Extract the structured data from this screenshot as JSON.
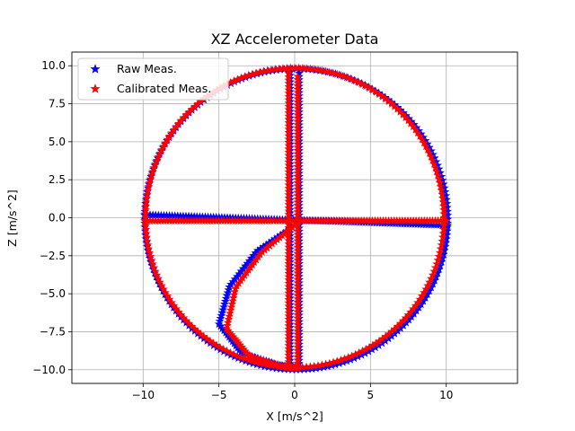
{
  "chart_data": {
    "type": "scatter",
    "title": "XZ Accelerometer Data",
    "xlabel": "X [m/s^2]",
    "ylabel": "Z [m/s^2]",
    "xlim": [
      -14.7,
      14.7
    ],
    "ylim": [
      -10.9,
      10.9
    ],
    "xticks": [
      -10,
      -5,
      0,
      5,
      10
    ],
    "xtick_labels": [
      "−10",
      "−5",
      "0",
      "5",
      "10"
    ],
    "yticks": [
      -10.0,
      -7.5,
      -5.0,
      -2.5,
      0.0,
      2.5,
      5.0,
      7.5,
      10.0
    ],
    "ytick_labels": [
      "−10.0",
      "−7.5",
      "−5.0",
      "−2.5",
      "0.0",
      "2.5",
      "5.0",
      "7.5",
      "10.0"
    ],
    "grid": true,
    "legend_position": "top-left",
    "marker": "star",
    "series": [
      {
        "name": "Raw Meas.",
        "color": "#0000ff",
        "segments": [
          {
            "shape": "ellipse",
            "center": [
              0.1,
              -0.1
            ],
            "radius_x": 10.0,
            "radius_z": 9.9,
            "count": 240
          },
          {
            "shape": "line",
            "from": [
              0.3,
              9.5
            ],
            "to": [
              0.3,
              -9.6
            ],
            "count": 90
          },
          {
            "shape": "line",
            "from": [
              -0.3,
              9.8
            ],
            "to": [
              -0.3,
              -9.6
            ],
            "count": 90
          },
          {
            "shape": "line",
            "from": [
              -9.9,
              0.2
            ],
            "to": [
              10.1,
              -0.5
            ],
            "count": 110
          },
          {
            "shape": "curve",
            "points": [
              [
                0.0,
                -0.5
              ],
              [
                -2.5,
                -2.2
              ],
              [
                -4.3,
                -4.5
              ],
              [
                -5.0,
                -7.0
              ],
              [
                -3.5,
                -8.9
              ],
              [
                -1.0,
                -9.7
              ],
              [
                0.2,
                -9.9
              ]
            ],
            "count": 80
          }
        ]
      },
      {
        "name": "Calibrated Meas.",
        "color": "#ff0000",
        "segments": [
          {
            "shape": "ellipse",
            "center": [
              0.0,
              0.0
            ],
            "radius_x": 9.85,
            "radius_z": 9.85,
            "count": 240
          },
          {
            "shape": "line",
            "from": [
              0.2,
              9.3
            ],
            "to": [
              0.2,
              -9.8
            ],
            "count": 90
          },
          {
            "shape": "line",
            "from": [
              -0.4,
              9.7
            ],
            "to": [
              -0.4,
              -9.7
            ],
            "count": 90
          },
          {
            "shape": "line",
            "from": [
              -9.9,
              -0.2
            ],
            "to": [
              10.0,
              -0.2
            ],
            "count": 110
          },
          {
            "shape": "curve",
            "points": [
              [
                0.0,
                -0.5
              ],
              [
                -2.2,
                -2.3
              ],
              [
                -3.9,
                -4.6
              ],
              [
                -4.5,
                -7.3
              ],
              [
                -3.0,
                -9.1
              ],
              [
                -0.8,
                -9.8
              ],
              [
                0.2,
                -9.9
              ]
            ],
            "count": 80
          }
        ]
      }
    ]
  }
}
